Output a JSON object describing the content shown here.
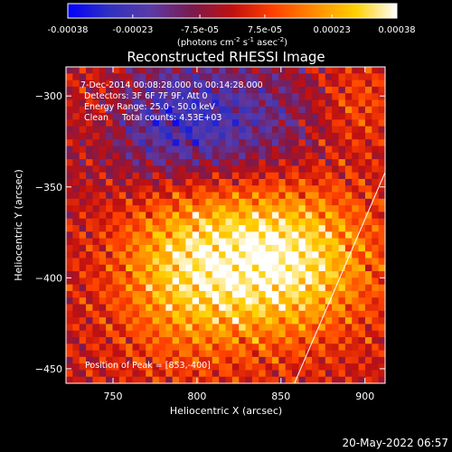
{
  "chart_data": {
    "type": "heatmap",
    "title": "Reconstructed RHESSI Image",
    "xlabel": "Heliocentric X (arcsec)",
    "ylabel": "Heliocentric Y (arcsec)",
    "xlim": [
      722,
      912
    ],
    "ylim": [
      -458,
      -284
    ],
    "xticks": [
      750,
      800,
      850,
      900
    ],
    "yticks": [
      -300,
      -350,
      -400,
      -450
    ],
    "colorbar": {
      "min": -0.00038,
      "max": 0.00038,
      "tick_values": [
        -0.00038,
        -0.00023,
        -7.5e-05,
        7.5e-05,
        0.00023,
        0.00038
      ],
      "tick_labels": [
        "-0.00038",
        "-0.00023",
        "-7.5e-05",
        "7.5e-05",
        "0.00023",
        "0.00038"
      ],
      "unit_label_parts": [
        "(photons cm",
        "-2",
        " s",
        "-1",
        " asec",
        "-2",
        ")"
      ],
      "colors": [
        "#0000ff",
        "#3030c0",
        "#5a3aa8",
        "#7a1a50",
        "#c01010",
        "#ff4000",
        "#ff8c00",
        "#ffd000",
        "#ffffff"
      ]
    },
    "annotations": [
      " 7-Dec-2014 00:08:28.000 to 00:14:28.000",
      "Detectors: 3F 6F 7F 9F, Att 0",
      "Energy Range: 25.0 - 50.0 keV",
      "Clean     Total counts: 4.53E+03"
    ],
    "peak_label": "Position of Peak = [853,-400]",
    "peak": [
      853,
      -400
    ],
    "limb_line": [
      [
        858,
        -458
      ],
      [
        912,
        -342
      ]
    ],
    "emission_regions": [
      {
        "center": [
          850,
          -390
        ],
        "sigma": [
          38,
          30
        ],
        "amplitude": 0.00036
      },
      {
        "center": [
          790,
          -395
        ],
        "sigma": [
          30,
          35
        ],
        "amplitude": 0.00022
      },
      {
        "center": [
          740,
          -310
        ],
        "sigma": [
          20,
          22
        ],
        "amplitude": 0.00016
      },
      {
        "center": [
          895,
          -305
        ],
        "sigma": [
          18,
          18
        ],
        "amplitude": 0.00012
      },
      {
        "center": [
          790,
          -315
        ],
        "sigma": [
          55,
          25
        ],
        "amplitude": -0.00028
      }
    ]
  },
  "footer": {
    "timestamp": "20-May-2022 06:57"
  }
}
